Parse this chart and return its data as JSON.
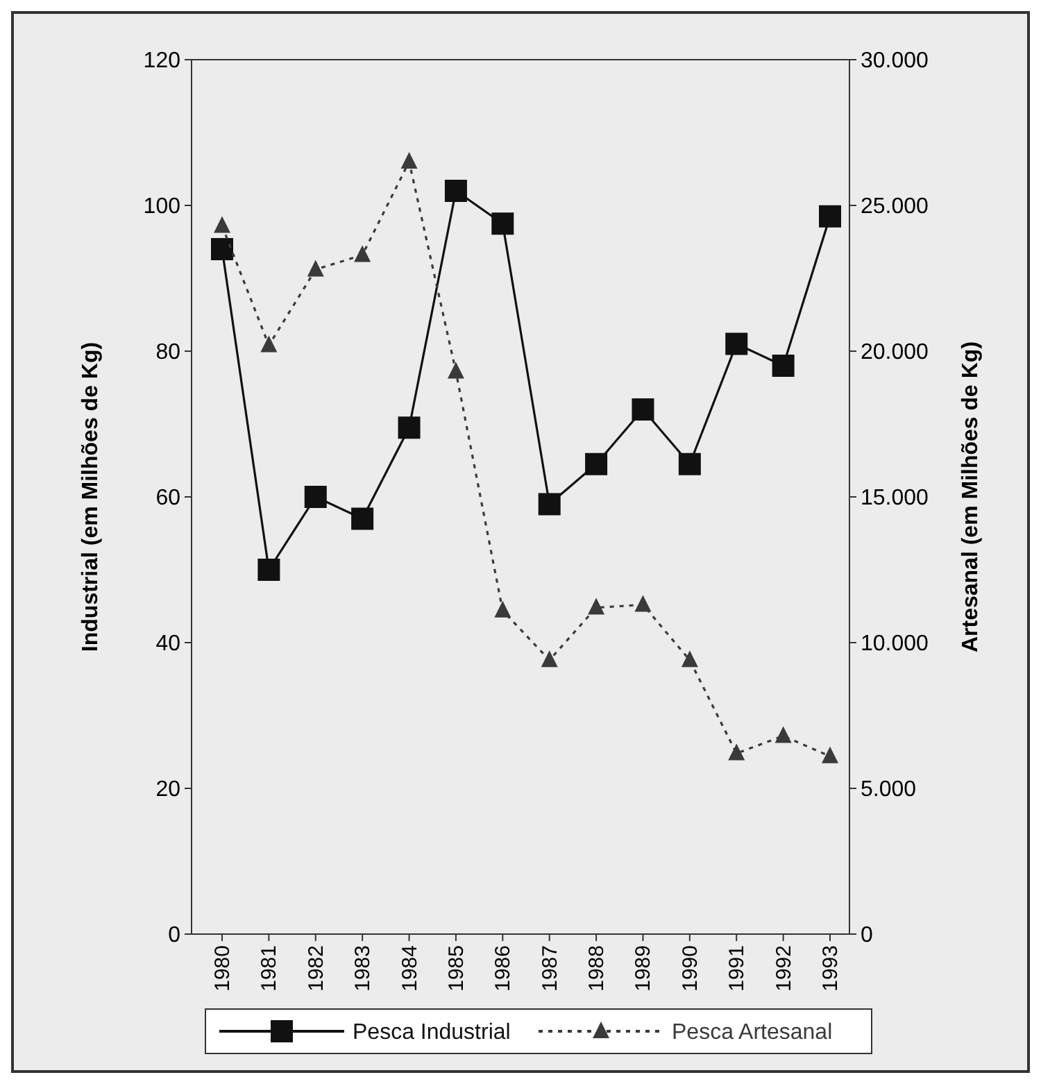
{
  "chart_data": {
    "type": "line",
    "ylabel": "Industrial (em Milhões de Kg)",
    "y2label": "Artesanal (em Milhões de Kg)",
    "categories": [
      "1980",
      "1981",
      "1982",
      "1983",
      "1984",
      "1985",
      "1986",
      "1987",
      "1988",
      "1989",
      "1990",
      "1991",
      "1992",
      "1993"
    ],
    "series": [
      {
        "name": "Pesca Industrial",
        "color": "#111111",
        "marker": "square",
        "line_style": "solid",
        "values": [
          94,
          50,
          60,
          57,
          69.5,
          102,
          97.5,
          59,
          64.5,
          72,
          64.5,
          81,
          78,
          98.5
        ]
      },
      {
        "name": "Pesca Artesanal",
        "color": "#3a3a3a",
        "marker": "triangle",
        "line_style": "dotted",
        "axis": "y2",
        "values": [
          24300,
          20200,
          22800,
          23300,
          26500,
          19300,
          11100,
          9400,
          11200,
          11300,
          9400,
          6200,
          6800,
          6100
        ]
      }
    ],
    "ylim": [
      0,
      120
    ],
    "yticks": [
      0,
      20,
      40,
      60,
      80,
      100,
      120
    ],
    "y2lim": [
      0,
      30000
    ],
    "y2ticks": [
      0,
      {
        "value": 5000,
        "label": "5.000"
      },
      {
        "value": 10000,
        "label": "10.000"
      },
      {
        "value": 15000,
        "label": "15.000"
      },
      {
        "value": 20000,
        "label": "20.000"
      },
      {
        "value": 25000,
        "label": "25.000"
      },
      {
        "value": 30000,
        "label": "30.000"
      }
    ],
    "grid": false,
    "legend": "bottom"
  }
}
